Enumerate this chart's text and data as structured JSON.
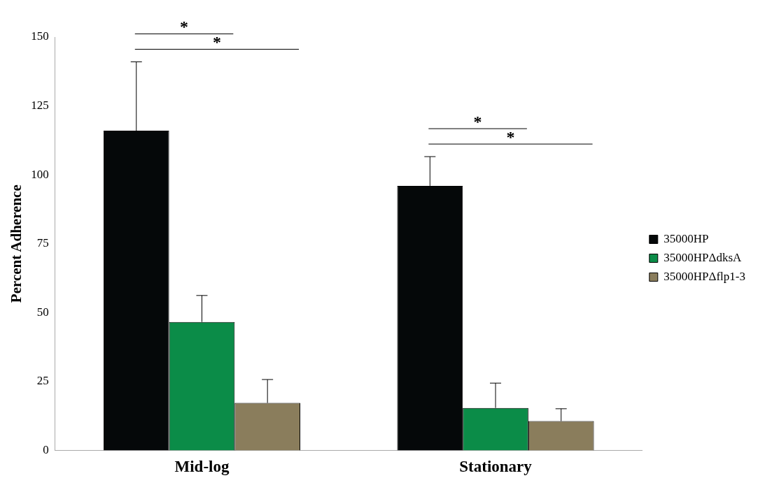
{
  "chart_data": {
    "type": "bar",
    "ylabel": "Percent Adherence",
    "categories": [
      "Mid-log",
      "Stationary"
    ],
    "series": [
      {
        "name": "35000HP",
        "color": "#050809",
        "values": [
          116,
          96
        ],
        "errors": [
          25,
          10.6
        ]
      },
      {
        "name": "35000HPΔdksA",
        "color": "#0b8c48",
        "values": [
          46.6,
          15.4
        ],
        "errors": [
          9.6,
          9
        ]
      },
      {
        "name": "35000HPΔflp1-3",
        "color": "#8a7d5c",
        "values": [
          17.2,
          10.6
        ],
        "errors": [
          8.5,
          4.5
        ]
      }
    ],
    "ylim": [
      0,
      150
    ],
    "yticks": [
      0,
      25,
      50,
      75,
      100,
      125,
      150
    ],
    "grid": false,
    "legend": "right",
    "annotations": [
      "*",
      "*",
      "*",
      "*"
    ]
  }
}
